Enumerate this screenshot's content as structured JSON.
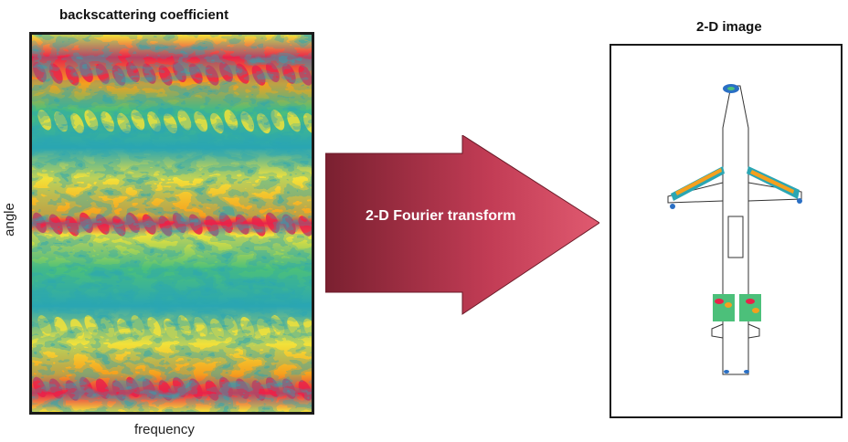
{
  "left_panel": {
    "title": "backscattering coefficient",
    "xlabel": "frequency",
    "ylabel": "angle"
  },
  "arrow": {
    "label": "2-D Fourier transform"
  },
  "right_panel": {
    "title": "2-D image"
  },
  "colors": {
    "hot": "#e8224a",
    "orange": "#f5a01e",
    "yellow": "#f2e23a",
    "green": "#4cc07a",
    "teal": "#2aa6b3",
    "blue": "#2a6fc4",
    "arrow_dark": "#7a2030",
    "arrow_light": "#e05a70"
  }
}
